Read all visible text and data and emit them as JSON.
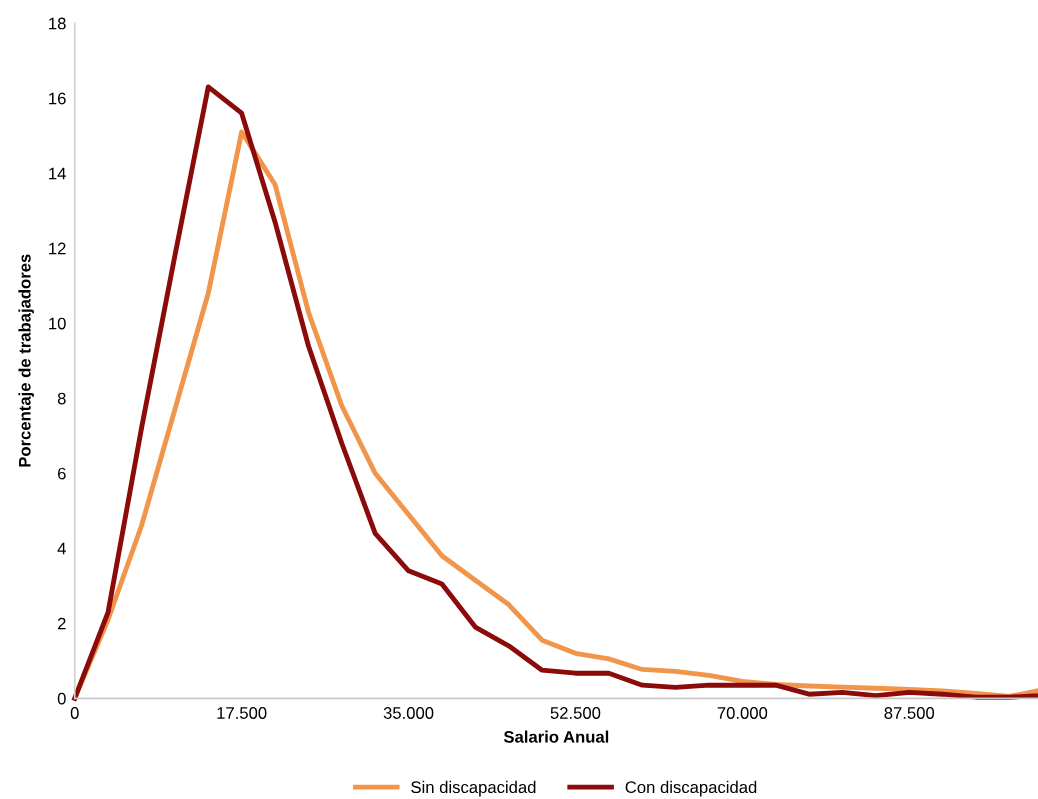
{
  "chart_data": {
    "type": "line",
    "xlabel": "Salario Anual",
    "ylabel": "Porcentaje de trabajadores",
    "x": [
      0,
      3500,
      7000,
      10500,
      14000,
      17500,
      21000,
      24500,
      28000,
      31500,
      35000,
      38500,
      42000,
      45500,
      49000,
      52500,
      56000,
      59500,
      63000,
      66500,
      70000,
      73500,
      77000,
      80500,
      84000,
      87500,
      91000,
      94500,
      98000,
      101000
    ],
    "series": [
      {
        "name": "Sin discapacidad",
        "color": "#f0954a",
        "values": [
          0,
          2.1,
          4.6,
          7.7,
          10.8,
          15.1,
          13.7,
          10.3,
          7.8,
          6.0,
          4.9,
          3.8,
          3.15,
          2.5,
          1.55,
          1.2,
          1.05,
          0.77,
          0.72,
          0.61,
          0.45,
          0.37,
          0.33,
          0.3,
          0.27,
          0.24,
          0.2,
          0.13,
          0.05,
          0.2
        ]
      },
      {
        "name": "Con discapacidad",
        "color": "#8b0a0a",
        "values": [
          0,
          2.3,
          7.2,
          11.8,
          16.3,
          15.6,
          12.7,
          9.4,
          6.8,
          4.4,
          3.4,
          3.05,
          1.9,
          1.4,
          0.75,
          0.67,
          0.67,
          0.35,
          0.29,
          0.35,
          0.35,
          0.35,
          0.11,
          0.16,
          0.07,
          0.16,
          0.11,
          0.03,
          0.03,
          0.07
        ]
      }
    ],
    "xlim": [
      0,
      101000
    ],
    "ylim": [
      0,
      18
    ],
    "xticks": [
      0,
      {
        "value": 17500,
        "label": "17.500"
      },
      {
        "value": 35000,
        "label": "35.000"
      },
      {
        "value": 52500,
        "label": "52.500"
      },
      {
        "value": 70000,
        "label": "70.000"
      },
      {
        "value": 87500,
        "label": "87.500"
      }
    ],
    "yticks": [
      0,
      2,
      4,
      6,
      8,
      10,
      12,
      14,
      16,
      18
    ],
    "grid": false,
    "legend": "bottom",
    "marker": "none",
    "line_style": "solid"
  }
}
